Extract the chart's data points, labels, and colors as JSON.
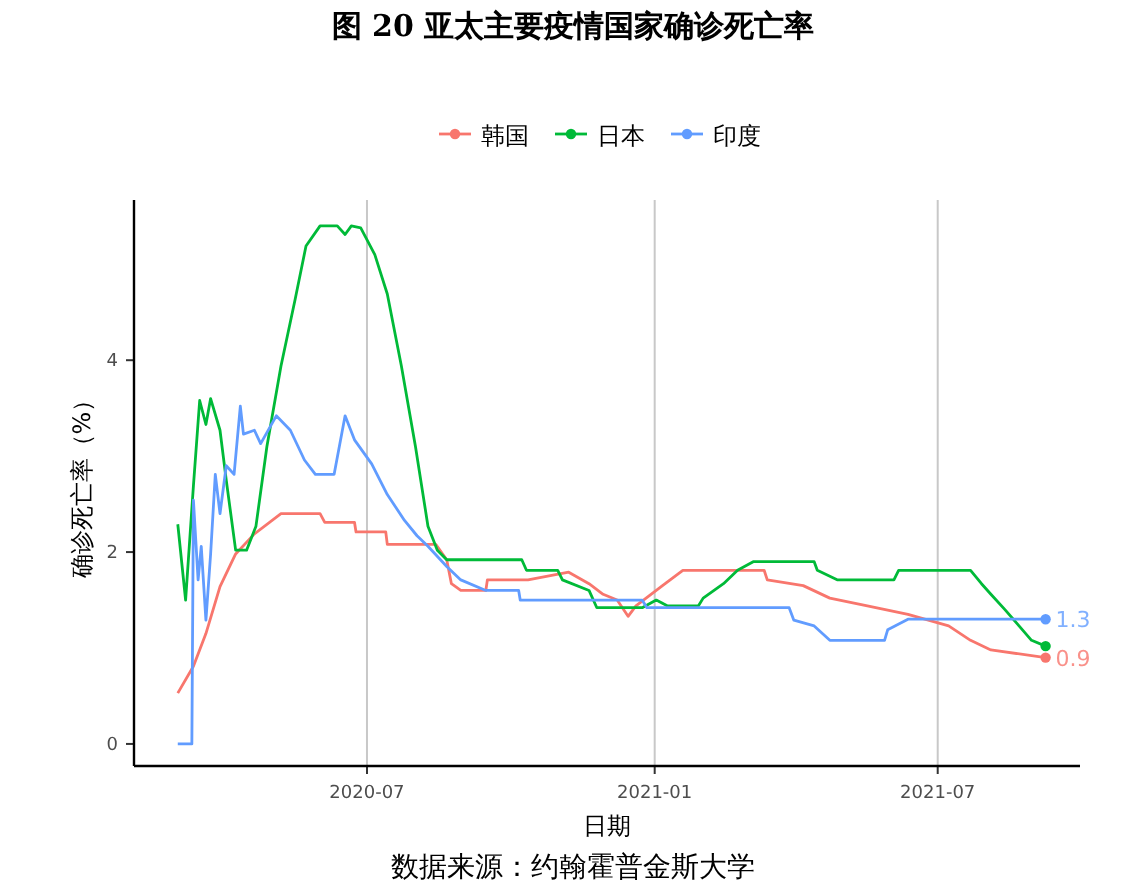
{
  "chart_data": {
    "type": "line",
    "title": "图 20 亚太主要疫情国家确诊死亡率",
    "xlabel": "日期",
    "ylabel": "确诊死亡率（%）",
    "xlim": [
      "2020-02-03",
      "2021-09-30"
    ],
    "ylim": [
      -0.23,
      5.67
    ],
    "yticks": [
      0,
      2,
      4
    ],
    "xticks": [
      {
        "value": "2020-07-01",
        "label": "2020-07"
      },
      {
        "value": "2021-01-01",
        "label": "2021-01"
      },
      {
        "value": "2021-07-01",
        "label": "2021-07"
      }
    ],
    "grid": "x",
    "legend": "top",
    "line_style": "solid",
    "annotations": [
      {
        "text": "1.3",
        "x": "2021-09-08",
        "y": 1.3
      },
      {
        "text": "0.9",
        "x": "2021-09-08",
        "y": 0.9
      },
      "数据来源：约翰霍普金斯大学"
    ],
    "series": [
      {
        "name": "韩国",
        "color": "#f8766d",
        "x": [
          "2020-03-02",
          "2020-03-12",
          "2020-03-20",
          "2020-03-29",
          "2020-04-08",
          "2020-04-20",
          "2020-05-07",
          "2020-06-01",
          "2020-06-04",
          "2020-06-23",
          "2020-06-24",
          "2020-07-13",
          "2020-07-14",
          "2020-08-14",
          "2020-08-21",
          "2020-08-24",
          "2020-08-30",
          "2020-09-15",
          "2020-09-16",
          "2020-10-12",
          "2020-11-07",
          "2020-11-20",
          "2020-11-29",
          "2020-12-08",
          "2020-12-15",
          "2020-12-20",
          "2021-01-06",
          "2021-01-19",
          "2021-03-12",
          "2021-03-14",
          "2021-04-06",
          "2021-04-23",
          "2021-05-17",
          "2021-06-12",
          "2021-07-08",
          "2021-07-22",
          "2021-08-04",
          "2021-09-08"
        ],
        "values": [
          0.53,
          0.81,
          1.15,
          1.64,
          1.98,
          2.19,
          2.4,
          2.4,
          2.31,
          2.31,
          2.21,
          2.21,
          2.08,
          2.08,
          1.92,
          1.67,
          1.6,
          1.6,
          1.71,
          1.71,
          1.79,
          1.67,
          1.56,
          1.5,
          1.33,
          1.44,
          1.65,
          1.81,
          1.81,
          1.71,
          1.65,
          1.52,
          1.44,
          1.35,
          1.23,
          1.08,
          0.98,
          0.9
        ]
      },
      {
        "name": "日本",
        "color": "#00ba38",
        "x": [
          "2020-03-02",
          "2020-03-07",
          "2020-03-12",
          "2020-03-16",
          "2020-03-20",
          "2020-03-23",
          "2020-03-29",
          "2020-04-02",
          "2020-04-08",
          "2020-04-15",
          "2020-04-21",
          "2020-04-28",
          "2020-05-07",
          "2020-05-16",
          "2020-05-23",
          "2020-06-01",
          "2020-06-12",
          "2020-06-17",
          "2020-06-21",
          "2020-06-27",
          "2020-07-06",
          "2020-07-14",
          "2020-07-23",
          "2020-08-01",
          "2020-08-09",
          "2020-08-15",
          "2020-08-21",
          "2020-10-08",
          "2020-10-11",
          "2020-10-31",
          "2020-11-03",
          "2020-11-20",
          "2020-11-25",
          "2020-12-24",
          "2021-01-02",
          "2021-01-09",
          "2021-01-29",
          "2021-02-01",
          "2021-02-14",
          "2021-02-23",
          "2021-03-05",
          "2021-04-13",
          "2021-04-15",
          "2021-04-28",
          "2021-06-03",
          "2021-06-06",
          "2021-07-22",
          "2021-07-29",
          "2021-08-04",
          "2021-08-13",
          "2021-08-22",
          "2021-08-30",
          "2021-09-08"
        ],
        "values": [
          2.29,
          1.5,
          2.69,
          3.58,
          3.33,
          3.6,
          3.27,
          2.75,
          2.02,
          2.02,
          2.27,
          3.1,
          3.94,
          4.63,
          5.19,
          5.4,
          5.4,
          5.31,
          5.4,
          5.38,
          5.1,
          4.69,
          3.94,
          3.1,
          2.27,
          2.02,
          1.92,
          1.92,
          1.81,
          1.81,
          1.71,
          1.6,
          1.42,
          1.42,
          1.5,
          1.44,
          1.44,
          1.52,
          1.67,
          1.81,
          1.9,
          1.9,
          1.81,
          1.71,
          1.71,
          1.81,
          1.81,
          1.67,
          1.56,
          1.4,
          1.23,
          1.08,
          1.02
        ]
      },
      {
        "name": "印度",
        "color": "#619cff",
        "x": [
          "2020-03-02",
          "2020-03-11",
          "2020-03-12",
          "2020-03-15",
          "2020-03-17",
          "2020-03-20",
          "2020-03-23",
          "2020-03-26",
          "2020-03-29",
          "2020-04-02",
          "2020-04-07",
          "2020-04-11",
          "2020-04-13",
          "2020-04-20",
          "2020-04-24",
          "2020-05-04",
          "2020-05-13",
          "2020-05-22",
          "2020-05-29",
          "2020-06-10",
          "2020-06-17",
          "2020-06-23",
          "2020-07-04",
          "2020-07-14",
          "2020-07-25",
          "2020-08-02",
          "2020-08-09",
          "2020-08-21",
          "2020-08-30",
          "2020-09-15",
          "2020-10-06",
          "2020-10-07",
          "2020-12-24",
          "2020-12-27",
          "2021-03-28",
          "2021-03-31",
          "2021-04-13",
          "2021-04-23",
          "2021-05-28",
          "2021-05-30",
          "2021-06-12",
          "2021-09-08"
        ],
        "values": [
          0,
          0,
          2.54,
          1.71,
          2.06,
          1.29,
          1.98,
          2.81,
          2.4,
          2.9,
          2.81,
          3.52,
          3.23,
          3.27,
          3.13,
          3.42,
          3.27,
          2.96,
          2.81,
          2.81,
          3.42,
          3.17,
          2.92,
          2.6,
          2.33,
          2.17,
          2.06,
          1.85,
          1.71,
          1.6,
          1.6,
          1.5,
          1.5,
          1.42,
          1.42,
          1.29,
          1.23,
          1.08,
          1.08,
          1.19,
          1.3,
          1.3
        ]
      }
    ]
  }
}
